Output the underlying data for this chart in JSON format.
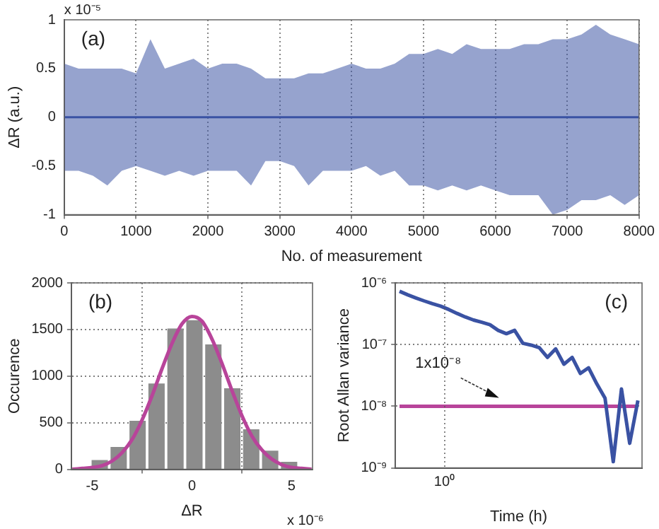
{
  "chart_data": [
    {
      "type": "line",
      "xlabel": "No. of measurement",
      "ylabel": "ΔR (a.u.)",
      "annotations": [
        "(a)",
        "x 10⁻⁵"
      ],
      "xlim": [
        0,
        8000
      ],
      "xticks": [
        0,
        1000,
        2000,
        3000,
        4000,
        5000,
        6000,
        7000,
        8000
      ],
      "ylim": [
        -1,
        1
      ],
      "yticks": [
        -1,
        -0.5,
        0,
        0.5,
        1
      ],
      "grid": "x",
      "x": [
        0,
        200,
        400,
        600,
        800,
        1000,
        1200,
        1400,
        1600,
        1800,
        2000,
        2200,
        2400,
        2600,
        2800,
        3000,
        3200,
        3400,
        3600,
        3800,
        4000,
        4200,
        4400,
        4600,
        4800,
        5000,
        5200,
        5400,
        5600,
        5800,
        6000,
        6200,
        6400,
        6600,
        6800,
        7000,
        7200,
        7400,
        7600,
        7800,
        8000
      ],
      "series": [
        {
          "color": "#3a52a3",
          "values": [
            0,
            0,
            0,
            0,
            0,
            0,
            0,
            0,
            0,
            0,
            0,
            0,
            0,
            0,
            0,
            0,
            0,
            0,
            0,
            0,
            0,
            0,
            0,
            0,
            0,
            0,
            0,
            0,
            0,
            0,
            0,
            0,
            0,
            0,
            0,
            0,
            0,
            0,
            0,
            0,
            0
          ],
          "upper": [
            0.55,
            0.5,
            0.5,
            0.5,
            0.5,
            0.45,
            0.8,
            0.5,
            0.55,
            0.6,
            0.5,
            0.55,
            0.55,
            0.5,
            0.4,
            0.4,
            0.4,
            0.45,
            0.45,
            0.5,
            0.55,
            0.5,
            0.5,
            0.55,
            0.65,
            0.65,
            0.7,
            0.65,
            0.75,
            0.7,
            0.7,
            0.7,
            0.75,
            0.75,
            0.8,
            0.8,
            0.85,
            0.95,
            0.85,
            0.8,
            0.75
          ],
          "lower": [
            -0.55,
            -0.55,
            -0.6,
            -0.7,
            -0.55,
            -0.5,
            -0.55,
            -0.6,
            -0.55,
            -0.6,
            -0.55,
            -0.55,
            -0.55,
            -0.7,
            -0.45,
            -0.45,
            -0.5,
            -0.7,
            -0.55,
            -0.55,
            -0.55,
            -0.5,
            -0.6,
            -0.55,
            -0.7,
            -0.7,
            -0.75,
            -0.7,
            -0.75,
            -0.7,
            -0.75,
            -0.8,
            -0.8,
            -0.8,
            -1,
            -0.95,
            -0.85,
            -0.85,
            -0.8,
            -0.9,
            -0.8
          ]
        }
      ]
    },
    {
      "type": "histogram",
      "xlabel": "ΔR",
      "ylabel": "Occurence",
      "annotations": [
        "(b)",
        "x 10⁻⁶"
      ],
      "xlim": [
        -6.05,
        6.05
      ],
      "xticks": [
        -5,
        0,
        5
      ],
      "ylim": [
        0,
        2000
      ],
      "yticks": [
        0,
        500,
        1000,
        1500,
        2000
      ],
      "grid": true,
      "color": "#8c8c8c",
      "bins": [
        -6.05,
        -5.1,
        -4.15,
        -3.2,
        -2.25,
        -1.3,
        -0.35,
        0.6,
        1.55,
        2.5,
        3.45,
        4.4,
        5.35
      ],
      "values": [
        20,
        100,
        240,
        520,
        920,
        1510,
        1600,
        1340,
        870,
        430,
        200,
        80
      ],
      "series": [
        {
          "type": "line",
          "color": "#b8449a",
          "x": [
            -6,
            -5.5,
            -5,
            -4.5,
            -4,
            -3.5,
            -3,
            -2.5,
            -2,
            -1.5,
            -1,
            -0.5,
            0,
            0.5,
            1,
            1.5,
            2,
            2.5,
            3,
            3.5,
            4,
            4.5,
            5,
            5.5,
            6
          ],
          "values": [
            0,
            10,
            20,
            40,
            90,
            180,
            320,
            530,
            790,
            1080,
            1350,
            1560,
            1640,
            1590,
            1400,
            1140,
            850,
            580,
            360,
            210,
            110,
            50,
            20,
            10,
            0
          ]
        }
      ]
    },
    {
      "type": "line",
      "xlabel": "Time (h)",
      "ylabel": "Root Allan variance",
      "annotations": [
        "(c)",
        "10⁰",
        {
          "text": "1x10⁻⁸",
          "y": 1e-08
        }
      ],
      "log": "y",
      "ylim": [
        1e-09,
        1e-06
      ],
      "yticks": [
        {
          "value": 1e-09,
          "label": "10⁻⁹"
        },
        {
          "value": 1e-08,
          "label": "10⁻⁸"
        },
        {
          "value": 1e-07,
          "label": "10⁻⁷"
        },
        {
          "value": 1e-06,
          "label": "10⁻⁶"
        }
      ],
      "grid": true,
      "categories": [
        null,
        null,
        null,
        null,
        null,
        null,
        null,
        null,
        null,
        null,
        null,
        null,
        null,
        null,
        null,
        null,
        null,
        null,
        null,
        null,
        null,
        null,
        null,
        null,
        null,
        null,
        null,
        null,
        null,
        null
      ],
      "series": [
        {
          "color": "#3a52a3",
          "values": [
            7.3e-07,
            6.4e-07,
            5.7e-07,
            5.1e-07,
            4.6e-07,
            4.2e-07,
            3.7e-07,
            3.2e-07,
            2.8e-07,
            2.5e-07,
            2.3e-07,
            2.1e-07,
            1.7e-07,
            1.5e-07,
            1.7e-07,
            1.05e-07,
            9.8e-08,
            8.9e-08,
            6.2e-08,
            8.5e-08,
            4.8e-08,
            6.2e-08,
            3.4e-08,
            4.2e-08,
            2.3e-08,
            1.35e-08,
            1.26e-09,
            1.9e-08,
            2.5e-09,
            1.24e-08
          ]
        },
        {
          "color": "#b8449a",
          "values": [
            1e-08,
            1e-08,
            1e-08,
            1e-08,
            1e-08,
            1e-08,
            1e-08,
            1e-08,
            1e-08,
            1e-08,
            1e-08,
            1e-08,
            1e-08,
            1e-08,
            1e-08,
            1e-08,
            1e-08,
            1e-08,
            1e-08,
            1e-08,
            1e-08,
            1e-08,
            1e-08,
            1e-08,
            1e-08,
            1e-08,
            1e-08,
            1e-08,
            1e-08,
            1e-08
          ]
        }
      ]
    }
  ]
}
